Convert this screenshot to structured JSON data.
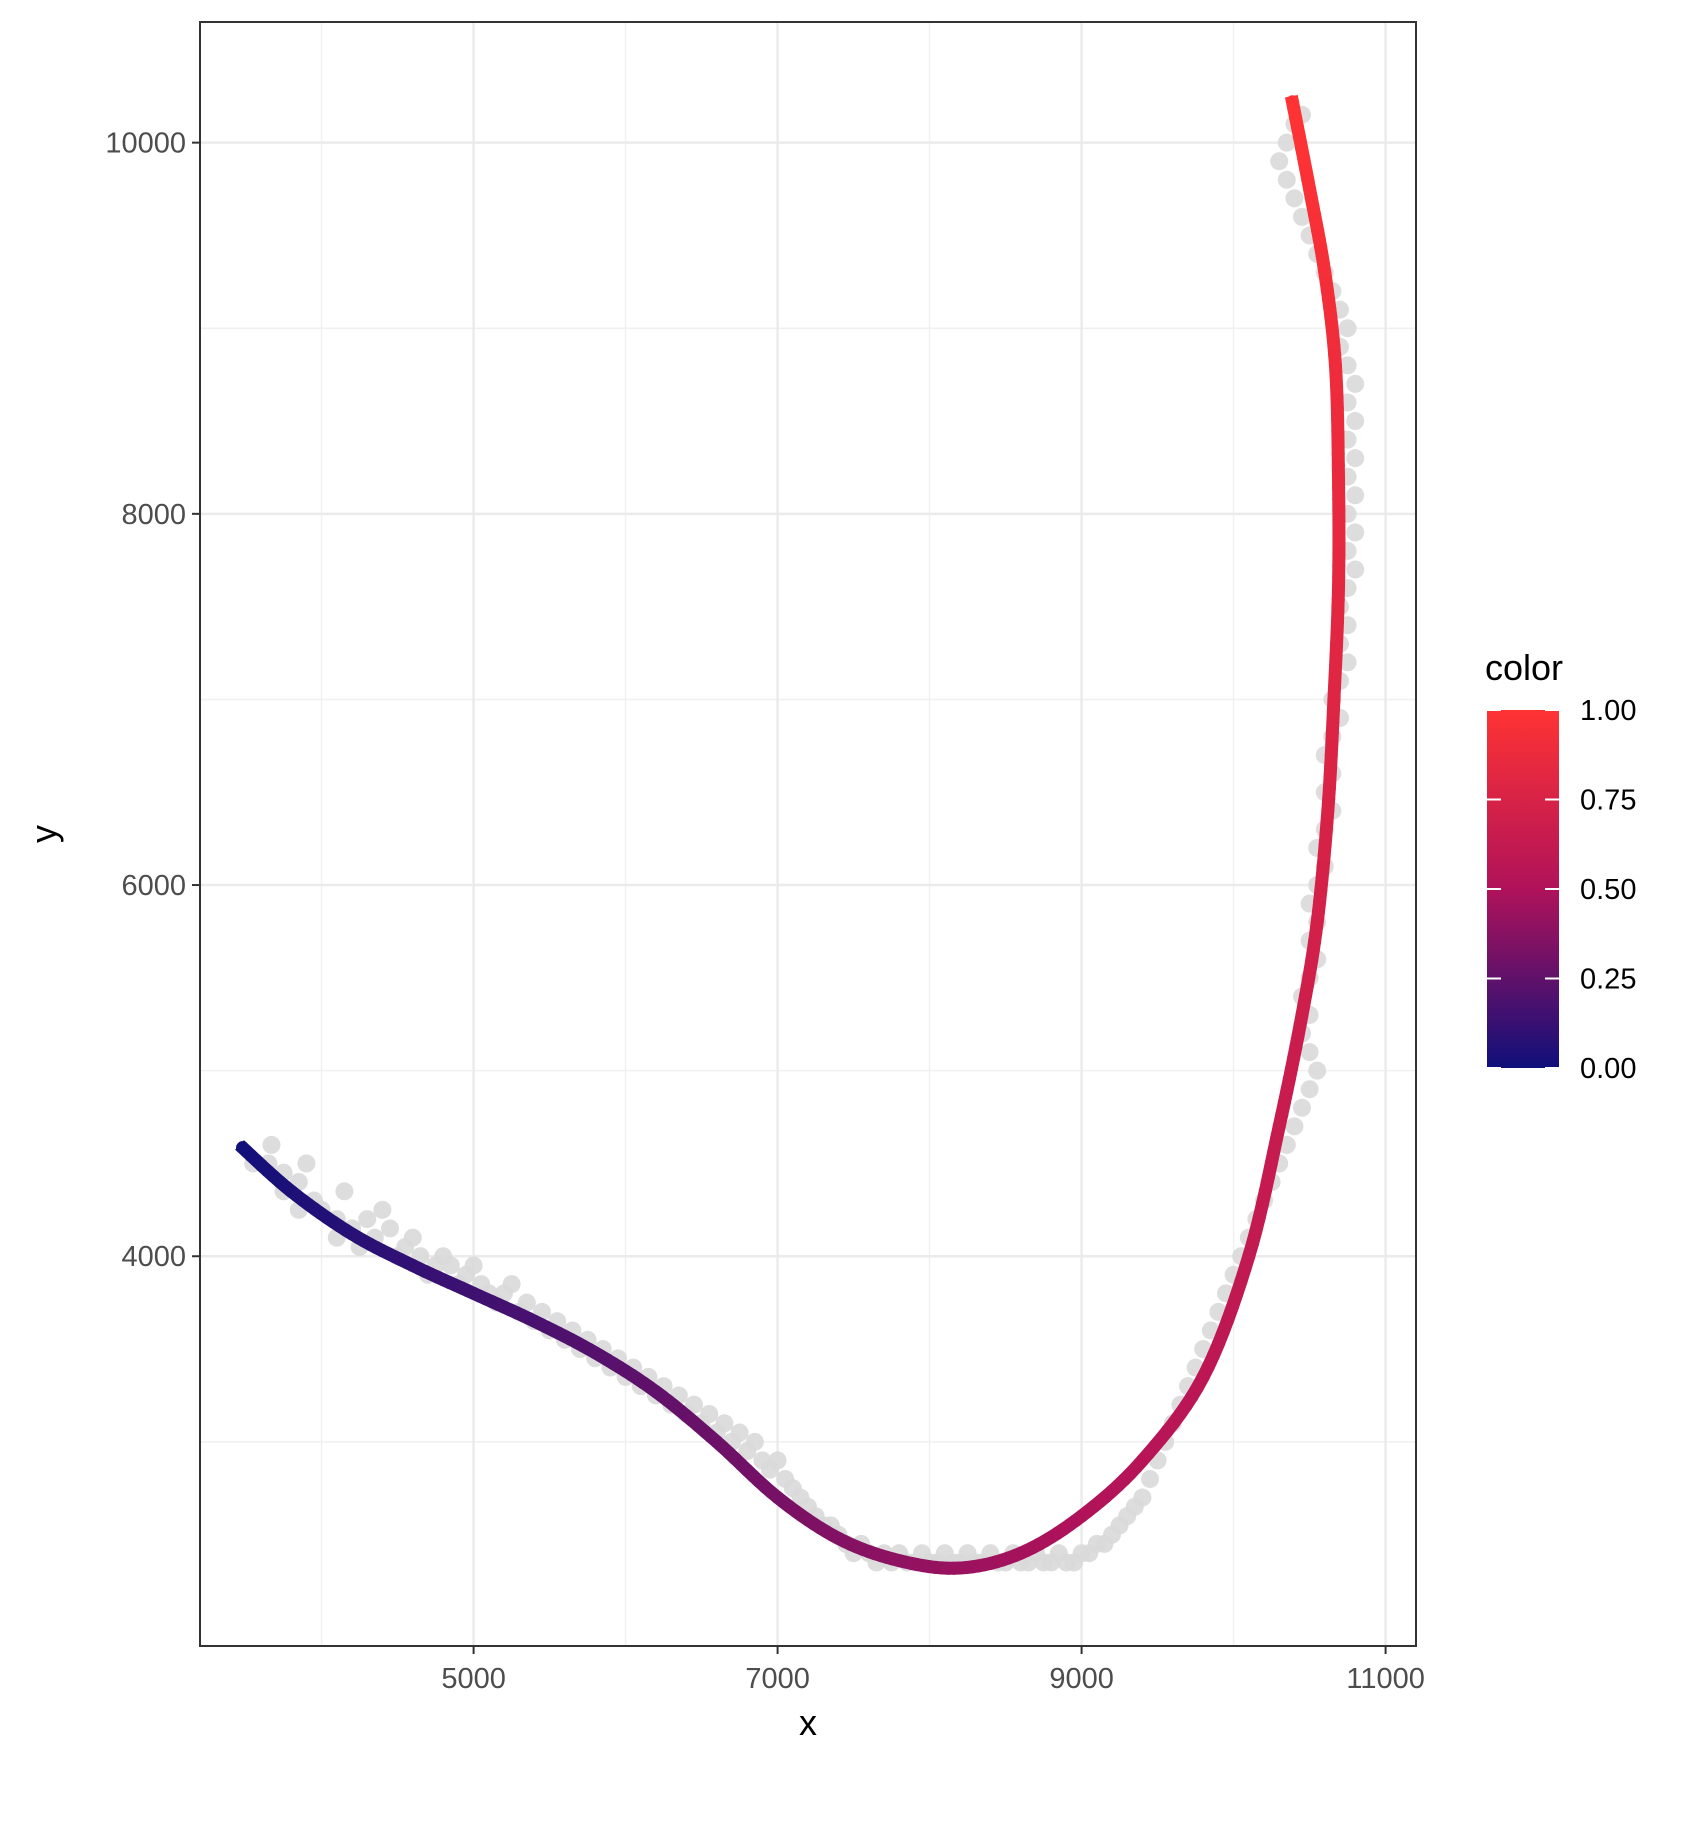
{
  "chart_data": {
    "type": "scatter",
    "title": "",
    "xlabel": "x",
    "ylabel": "y",
    "xlim": [
      3200,
      11200
    ],
    "ylim": [
      1900,
      10650
    ],
    "x_ticks": [
      5000,
      7000,
      9000,
      11000
    ],
    "y_ticks": [
      4000,
      6000,
      8000,
      10000
    ],
    "x_tick_labels": [
      "5000",
      "7000",
      "9000",
      "11000"
    ],
    "y_tick_labels": [
      "4000",
      "6000",
      "8000",
      "10000"
    ],
    "grid": true,
    "legend": {
      "title": "color",
      "placement": "right",
      "breaks": [
        0,
        0.25,
        0.5,
        0.75,
        1.0
      ],
      "labels": [
        "0.00",
        "0.25",
        "0.50",
        "0.75",
        "1.00"
      ],
      "low_color": "#10107a",
      "mid_color": "#b0125a",
      "high_color": "#ff3333"
    },
    "points_color": "#d9d9d9",
    "points": [
      [
        3550,
        4500
      ],
      [
        3650,
        4500
      ],
      [
        3750,
        4450
      ],
      [
        3670,
        4600
      ],
      [
        3750,
        4350
      ],
      [
        3850,
        4400
      ],
      [
        3900,
        4500
      ],
      [
        3850,
        4250
      ],
      [
        3950,
        4300
      ],
      [
        4000,
        4250
      ],
      [
        4100,
        4200
      ],
      [
        4150,
        4350
      ],
      [
        4100,
        4100
      ],
      [
        4200,
        4150
      ],
      [
        4300,
        4200
      ],
      [
        4250,
        4050
      ],
      [
        4350,
        4100
      ],
      [
        4400,
        4250
      ],
      [
        4450,
        4150
      ],
      [
        4500,
        4000
      ],
      [
        4550,
        4050
      ],
      [
        4600,
        4100
      ],
      [
        4650,
        4000
      ],
      [
        4700,
        3900
      ],
      [
        4750,
        3950
      ],
      [
        4800,
        4000
      ],
      [
        4850,
        3950
      ],
      [
        4900,
        3850
      ],
      [
        4950,
        3900
      ],
      [
        5000,
        3950
      ],
      [
        5050,
        3850
      ],
      [
        5100,
        3800
      ],
      [
        5150,
        3750
      ],
      [
        5200,
        3800
      ],
      [
        5250,
        3850
      ],
      [
        5300,
        3700
      ],
      [
        5350,
        3750
      ],
      [
        5400,
        3650
      ],
      [
        5450,
        3700
      ],
      [
        5500,
        3600
      ],
      [
        5550,
        3650
      ],
      [
        5600,
        3550
      ],
      [
        5650,
        3600
      ],
      [
        5700,
        3500
      ],
      [
        5750,
        3550
      ],
      [
        5800,
        3450
      ],
      [
        5850,
        3500
      ],
      [
        5900,
        3400
      ],
      [
        5950,
        3450
      ],
      [
        6000,
        3350
      ],
      [
        6050,
        3400
      ],
      [
        6100,
        3300
      ],
      [
        6150,
        3350
      ],
      [
        6200,
        3250
      ],
      [
        6250,
        3300
      ],
      [
        6300,
        3200
      ],
      [
        6350,
        3250
      ],
      [
        6400,
        3150
      ],
      [
        6450,
        3200
      ],
      [
        6500,
        3100
      ],
      [
        6550,
        3150
      ],
      [
        6600,
        3050
      ],
      [
        6650,
        3100
      ],
      [
        6700,
        3000
      ],
      [
        6750,
        3050
      ],
      [
        6800,
        2950
      ],
      [
        6850,
        3000
      ],
      [
        6900,
        2900
      ],
      [
        6950,
        2850
      ],
      [
        7000,
        2900
      ],
      [
        7050,
        2800
      ],
      [
        7100,
        2750
      ],
      [
        7150,
        2700
      ],
      [
        7200,
        2650
      ],
      [
        7250,
        2600
      ],
      [
        7300,
        2550
      ],
      [
        7350,
        2550
      ],
      [
        7400,
        2500
      ],
      [
        7450,
        2450
      ],
      [
        7500,
        2400
      ],
      [
        7550,
        2450
      ],
      [
        7600,
        2400
      ],
      [
        7650,
        2350
      ],
      [
        7700,
        2400
      ],
      [
        7750,
        2350
      ],
      [
        7800,
        2400
      ],
      [
        7850,
        2350
      ],
      [
        7900,
        2350
      ],
      [
        7950,
        2400
      ],
      [
        8000,
        2350
      ],
      [
        8050,
        2350
      ],
      [
        8100,
        2400
      ],
      [
        8150,
        2350
      ],
      [
        8200,
        2350
      ],
      [
        8250,
        2400
      ],
      [
        8300,
        2350
      ],
      [
        8350,
        2350
      ],
      [
        8400,
        2400
      ],
      [
        8450,
        2350
      ],
      [
        8500,
        2350
      ],
      [
        8550,
        2400
      ],
      [
        8600,
        2350
      ],
      [
        8650,
        2350
      ],
      [
        8700,
        2400
      ],
      [
        8750,
        2350
      ],
      [
        8800,
        2350
      ],
      [
        8850,
        2400
      ],
      [
        8900,
        2350
      ],
      [
        8950,
        2350
      ],
      [
        9000,
        2400
      ],
      [
        9050,
        2400
      ],
      [
        9100,
        2450
      ],
      [
        9150,
        2450
      ],
      [
        9200,
        2500
      ],
      [
        9250,
        2550
      ],
      [
        9300,
        2600
      ],
      [
        9350,
        2650
      ],
      [
        9400,
        2700
      ],
      [
        9450,
        2800
      ],
      [
        9500,
        2900
      ],
      [
        9550,
        3000
      ],
      [
        9600,
        3100
      ],
      [
        9650,
        3200
      ],
      [
        9700,
        3300
      ],
      [
        9750,
        3400
      ],
      [
        9800,
        3500
      ],
      [
        9850,
        3600
      ],
      [
        9900,
        3700
      ],
      [
        9950,
        3800
      ],
      [
        10000,
        3900
      ],
      [
        10050,
        4000
      ],
      [
        10100,
        4100
      ],
      [
        10150,
        4200
      ],
      [
        10200,
        4300
      ],
      [
        10250,
        4400
      ],
      [
        10300,
        4500
      ],
      [
        10350,
        4600
      ],
      [
        10400,
        4700
      ],
      [
        10450,
        4800
      ],
      [
        10500,
        4900
      ],
      [
        10550,
        5000
      ],
      [
        10500,
        5100
      ],
      [
        10450,
        5200
      ],
      [
        10500,
        5300
      ],
      [
        10450,
        5400
      ],
      [
        10500,
        5500
      ],
      [
        10550,
        5600
      ],
      [
        10500,
        5700
      ],
      [
        10550,
        5800
      ],
      [
        10500,
        5900
      ],
      [
        10550,
        6000
      ],
      [
        10600,
        6100
      ],
      [
        10550,
        6200
      ],
      [
        10600,
        6300
      ],
      [
        10650,
        6400
      ],
      [
        10600,
        6500
      ],
      [
        10650,
        6600
      ],
      [
        10600,
        6700
      ],
      [
        10650,
        6800
      ],
      [
        10700,
        6900
      ],
      [
        10650,
        7000
      ],
      [
        10700,
        7100
      ],
      [
        10750,
        7200
      ],
      [
        10700,
        7300
      ],
      [
        10750,
        7400
      ],
      [
        10700,
        7500
      ],
      [
        10750,
        7600
      ],
      [
        10800,
        7700
      ],
      [
        10750,
        7800
      ],
      [
        10800,
        7900
      ],
      [
        10750,
        8000
      ],
      [
        10800,
        8100
      ],
      [
        10750,
        8200
      ],
      [
        10800,
        8300
      ],
      [
        10750,
        8400
      ],
      [
        10800,
        8500
      ],
      [
        10750,
        8600
      ],
      [
        10800,
        8700
      ],
      [
        10750,
        8800
      ],
      [
        10700,
        8900
      ],
      [
        10750,
        9000
      ],
      [
        10700,
        9100
      ],
      [
        10650,
        9200
      ],
      [
        10600,
        9300
      ],
      [
        10550,
        9400
      ],
      [
        10500,
        9500
      ],
      [
        10450,
        9600
      ],
      [
        10400,
        9700
      ],
      [
        10350,
        9800
      ],
      [
        10300,
        9900
      ],
      [
        10350,
        10000
      ],
      [
        10400,
        10100
      ],
      [
        10450,
        10150
      ]
    ],
    "curve": [
      [
        3460,
        4600
      ],
      [
        3800,
        4350
      ],
      [
        4200,
        4120
      ],
      [
        4600,
        3950
      ],
      [
        5000,
        3800
      ],
      [
        5400,
        3650
      ],
      [
        5800,
        3480
      ],
      [
        6200,
        3270
      ],
      [
        6600,
        3000
      ],
      [
        7000,
        2700
      ],
      [
        7400,
        2480
      ],
      [
        7800,
        2360
      ],
      [
        8200,
        2320
      ],
      [
        8600,
        2400
      ],
      [
        9000,
        2600
      ],
      [
        9400,
        2900
      ],
      [
        9800,
        3350
      ],
      [
        10100,
        4000
      ],
      [
        10300,
        4700
      ],
      [
        10450,
        5300
      ],
      [
        10550,
        5800
      ],
      [
        10620,
        6400
      ],
      [
        10660,
        7000
      ],
      [
        10690,
        7600
      ],
      [
        10690,
        8200
      ],
      [
        10670,
        8800
      ],
      [
        10600,
        9300
      ],
      [
        10500,
        9750
      ],
      [
        10380,
        10250
      ]
    ]
  }
}
